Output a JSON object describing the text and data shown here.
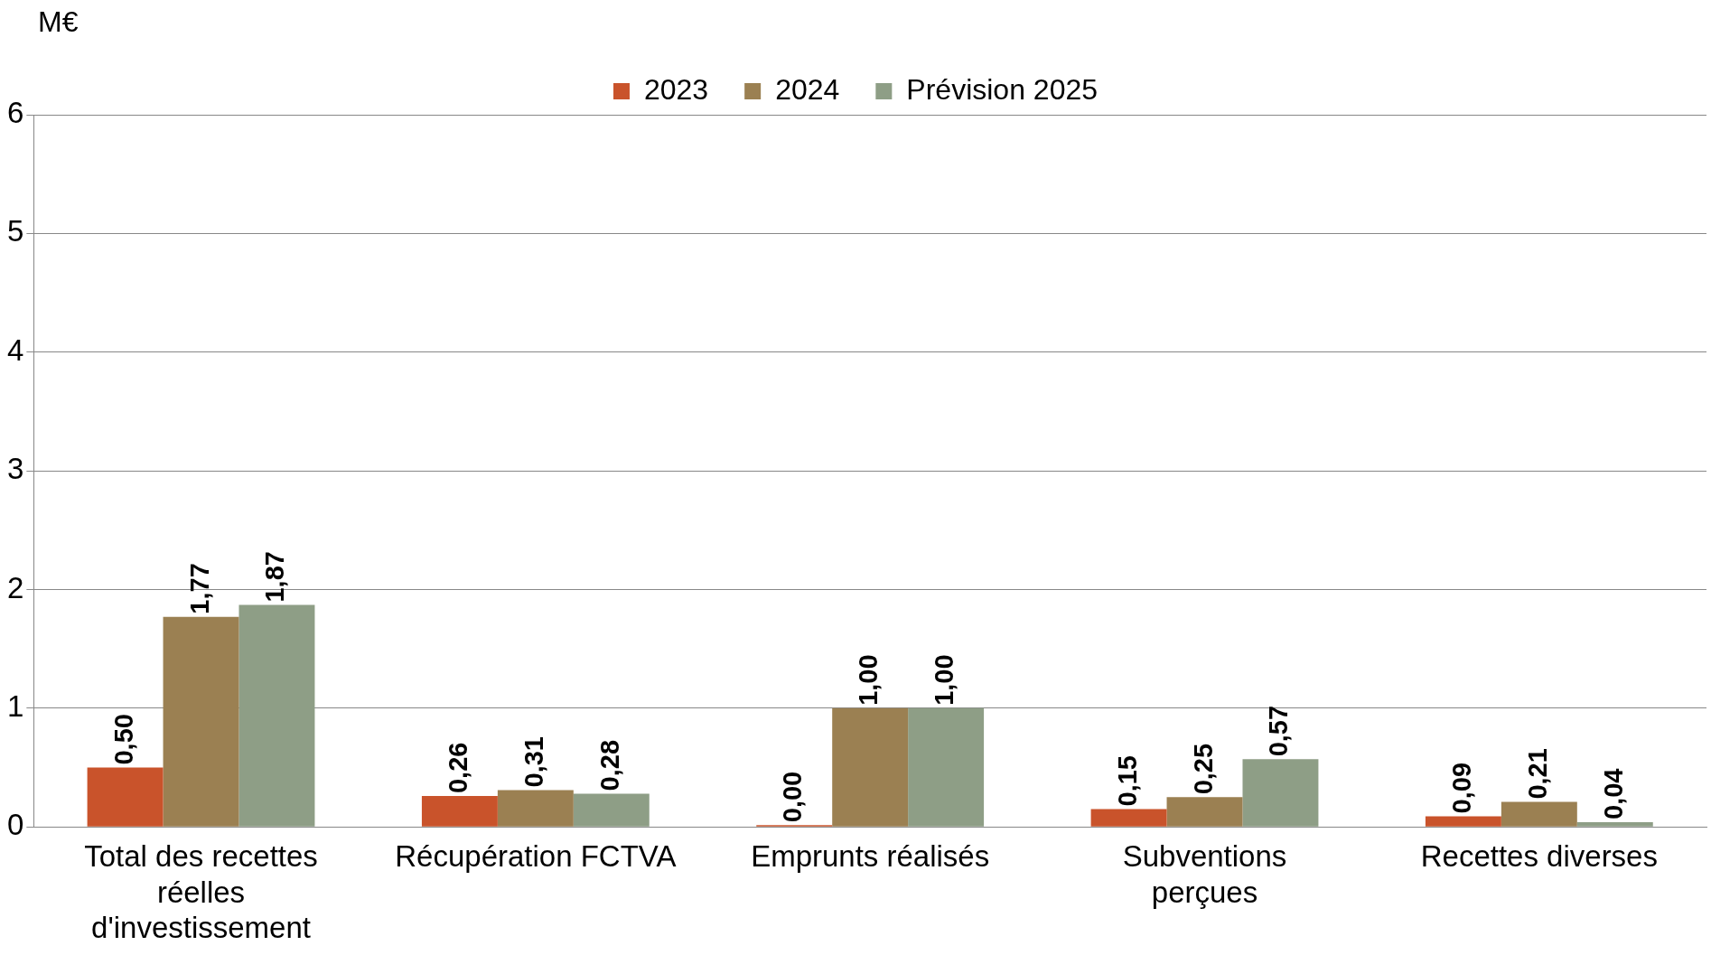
{
  "chart_data": {
    "type": "bar",
    "ylabel": "M€",
    "categories": [
      "Total des recettes réelles d'investissement",
      "Récupération FCTVA",
      "Emprunts réalisés",
      "Subventions perçues",
      "Recettes diverses"
    ],
    "series": [
      {
        "name": "2023",
        "color": "#c9532b",
        "values": [
          0.5,
          0.26,
          0,
          0.15,
          0.09
        ],
        "value_labels": [
          "0,50",
          "0,26",
          "0,00",
          "0,15",
          "0,09"
        ]
      },
      {
        "name": "2024",
        "color": "#9b8052",
        "values": [
          1.77,
          0.31,
          1,
          0.25,
          0.21
        ],
        "value_labels": [
          "1,77",
          "0,31",
          "1,00",
          "0,25",
          "0,21"
        ]
      },
      {
        "name": "Prévision 2025",
        "color": "#8e9e86",
        "values": [
          1.87,
          0.28,
          1,
          0.57,
          0.04
        ],
        "value_labels": [
          "1,87",
          "0,28",
          "1,00",
          "0,57",
          "0,04"
        ]
      }
    ],
    "ylim": [
      0,
      6
    ],
    "yticks": [
      0,
      1,
      2,
      3,
      4,
      5,
      6
    ],
    "grid": "y",
    "legend": "top"
  }
}
